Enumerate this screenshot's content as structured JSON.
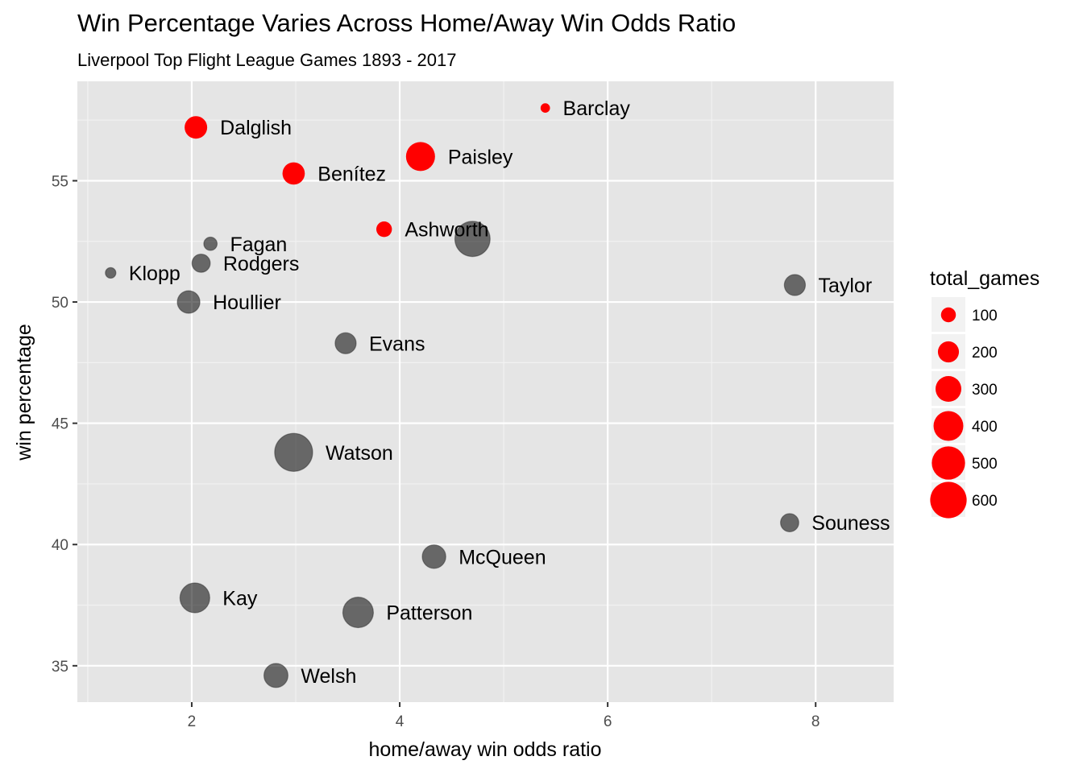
{
  "chart_data": {
    "type": "scatter",
    "title": "Win Percentage Varies Across Home/Away Win Odds Ratio",
    "subtitle": "Liverpool Top Flight League Games 1893 - 2017",
    "xlabel": "home/away win odds ratio",
    "ylabel": "win percentage",
    "xlim": [
      0.9,
      8.75
    ],
    "ylim": [
      33.5,
      59.1
    ],
    "x_ticks": [
      2,
      4,
      6,
      8
    ],
    "y_ticks": [
      35,
      40,
      45,
      50,
      55
    ],
    "grid": true,
    "colors": {
      "highlight": "#ff0000",
      "other": "#000000",
      "panel": "#e5e5e5",
      "grid": "#ffffff"
    },
    "size_legend": {
      "title": "total_games",
      "position": "right",
      "values": [
        100,
        200,
        300,
        400,
        500,
        600
      ]
    },
    "points": [
      {
        "label": "Barclay",
        "x": 5.4,
        "y": 58.0,
        "total_games": 40,
        "highlight": true
      },
      {
        "label": "Dalglish",
        "x": 2.04,
        "y": 57.2,
        "total_games": 230,
        "highlight": true
      },
      {
        "label": "Paisley",
        "x": 4.2,
        "y": 56.0,
        "total_games": 380,
        "highlight": true
      },
      {
        "label": "Benítez",
        "x": 2.98,
        "y": 55.3,
        "total_games": 225,
        "highlight": true
      },
      {
        "label": "Ashworth",
        "x": 3.85,
        "y": 53.0,
        "total_games": 110,
        "highlight": true
      },
      {
        "label": "",
        "x": 4.7,
        "y": 52.6,
        "total_games": 560,
        "highlight": false
      },
      {
        "label": "Fagan",
        "x": 2.18,
        "y": 52.4,
        "total_games": 80,
        "highlight": false
      },
      {
        "label": "Rodgers",
        "x": 2.09,
        "y": 51.6,
        "total_games": 150,
        "highlight": false
      },
      {
        "label": "Klopp",
        "x": 1.22,
        "y": 51.2,
        "total_games": 50,
        "highlight": false
      },
      {
        "label": "Taylor",
        "x": 7.8,
        "y": 50.7,
        "total_games": 200,
        "highlight": false
      },
      {
        "label": "Houllier",
        "x": 1.97,
        "y": 50.0,
        "total_games": 230,
        "highlight": false
      },
      {
        "label": "Evans",
        "x": 3.48,
        "y": 48.3,
        "total_games": 200,
        "highlight": false
      },
      {
        "label": "Watson",
        "x": 2.98,
        "y": 43.8,
        "total_games": 650,
        "highlight": false
      },
      {
        "label": "Souness",
        "x": 7.75,
        "y": 40.9,
        "total_games": 150,
        "highlight": false
      },
      {
        "label": "McQueen",
        "x": 4.33,
        "y": 39.5,
        "total_games": 250,
        "highlight": false
      },
      {
        "label": "Kay",
        "x": 2.03,
        "y": 37.8,
        "total_games": 400,
        "highlight": false
      },
      {
        "label": "Patterson",
        "x": 3.6,
        "y": 37.2,
        "total_games": 420,
        "highlight": false
      },
      {
        "label": "Welsh",
        "x": 2.81,
        "y": 34.6,
        "total_games": 260,
        "highlight": false
      }
    ]
  }
}
